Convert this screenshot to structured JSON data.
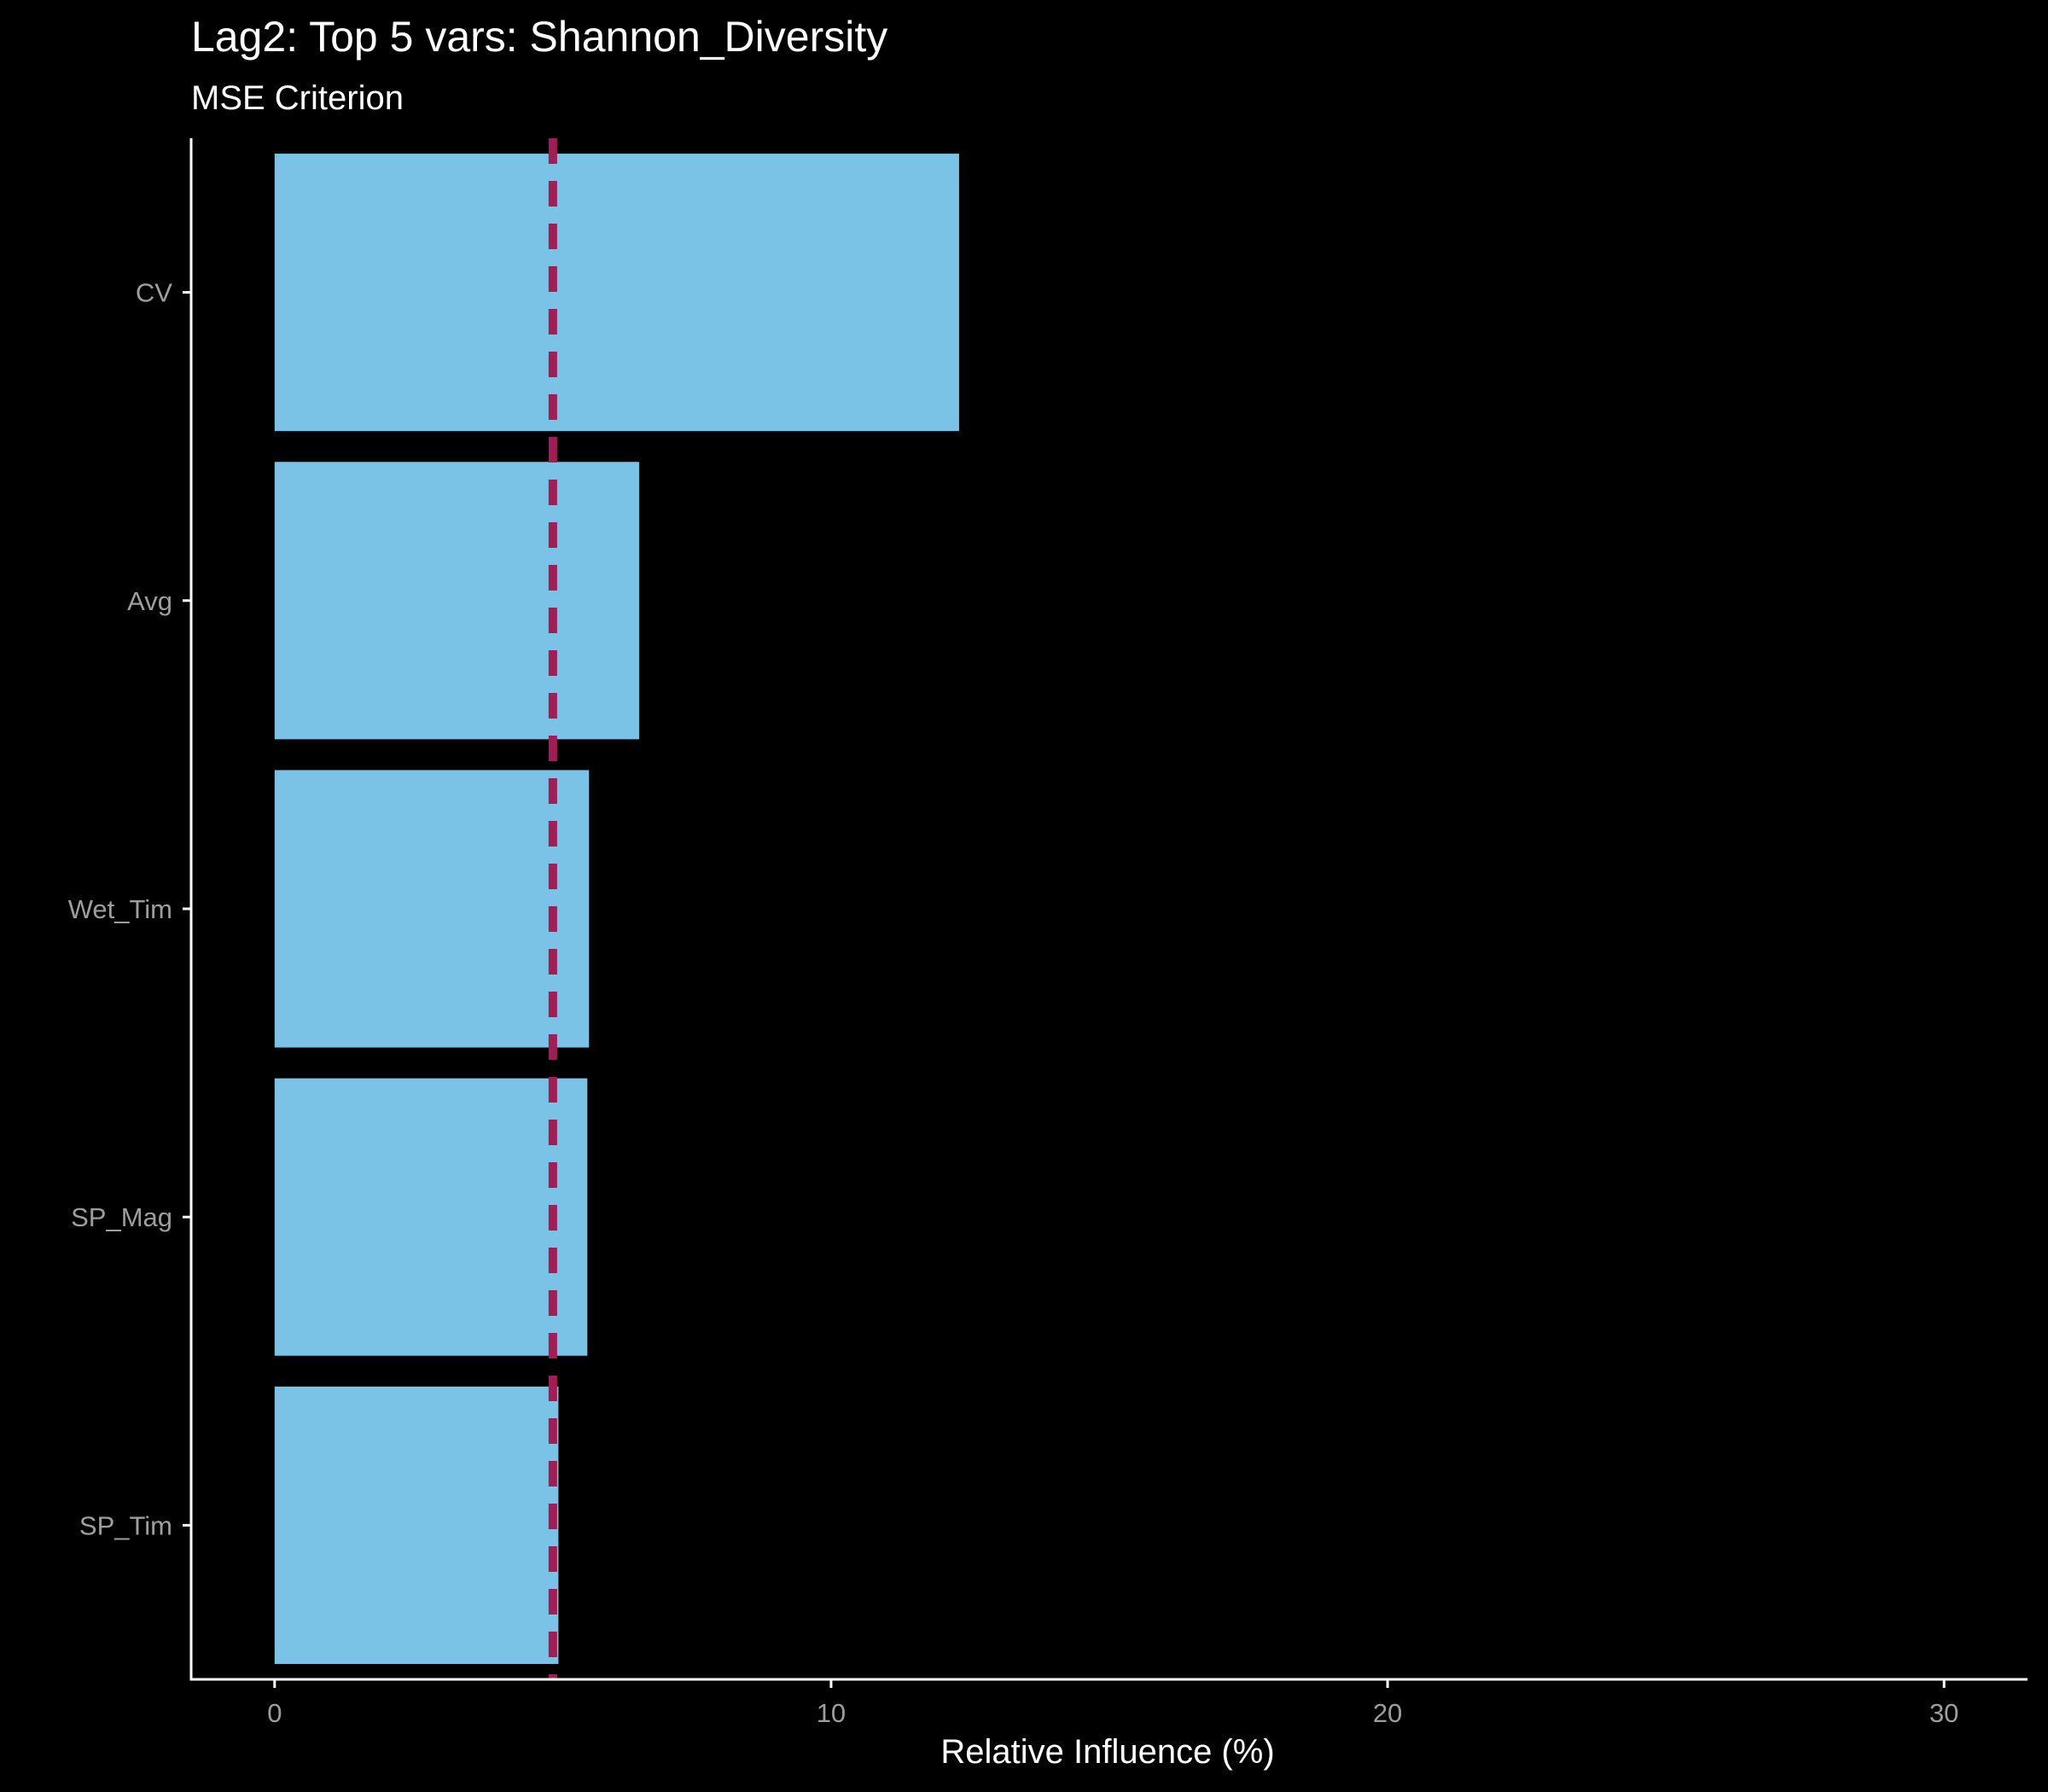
{
  "chart_data": {
    "type": "bar",
    "orientation": "horizontal",
    "title": "Lag2: Top 5 vars: Shannon_Diversity",
    "subtitle": "MSE Criterion",
    "xlabel": "Relative Influence (%)",
    "ylabel": "",
    "categories": [
      "CV",
      "Avg",
      "Wet_Tim",
      "SP_Mag",
      "SP_Tim"
    ],
    "values": [
      12.3,
      6.55,
      5.65,
      5.62,
      5.1
    ],
    "xlim": [
      -1.5,
      31.5
    ],
    "xticks": [
      0,
      10,
      20,
      30
    ],
    "xtick_labels": [
      "0",
      "10",
      "20",
      "30"
    ],
    "reference_line": {
      "x": 5.0,
      "style": "dashed"
    },
    "grid": false,
    "legend": "none",
    "colors": {
      "background": "#000000",
      "bar": "#7AC3E6",
      "reference_line": "#9E1F55",
      "axis": "#ffffff",
      "tick_label": "#9e9e9e",
      "text": "#ffffff"
    }
  }
}
